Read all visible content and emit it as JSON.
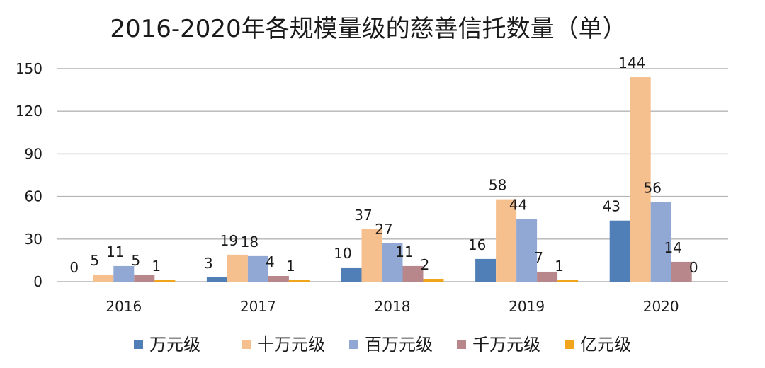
{
  "chart_data": {
    "type": "bar",
    "title": "2016-2020年各规模量级的慈善信托数量（单）",
    "xlabel": "",
    "ylabel": "",
    "ylim": [
      0,
      150
    ],
    "yticks": [
      0,
      30,
      60,
      90,
      120,
      150
    ],
    "grid": true,
    "legend": "bottom",
    "categories": [
      "2016",
      "2017",
      "2018",
      "2019",
      "2020"
    ],
    "series": [
      {
        "name": "万元级",
        "color": "#4f7fb6",
        "values": [
          0,
          3,
          10,
          16,
          43
        ]
      },
      {
        "name": "十万元级",
        "color": "#f6c08e",
        "values": [
          5,
          19,
          37,
          58,
          144
        ]
      },
      {
        "name": "百万元级",
        "color": "#91a8d5",
        "values": [
          11,
          18,
          27,
          44,
          56
        ]
      },
      {
        "name": "千万元级",
        "color": "#b7878c",
        "values": [
          5,
          4,
          11,
          7,
          14
        ]
      },
      {
        "name": "亿元级",
        "color": "#f0a51c",
        "values": [
          1,
          1,
          2,
          1,
          0
        ]
      }
    ]
  }
}
